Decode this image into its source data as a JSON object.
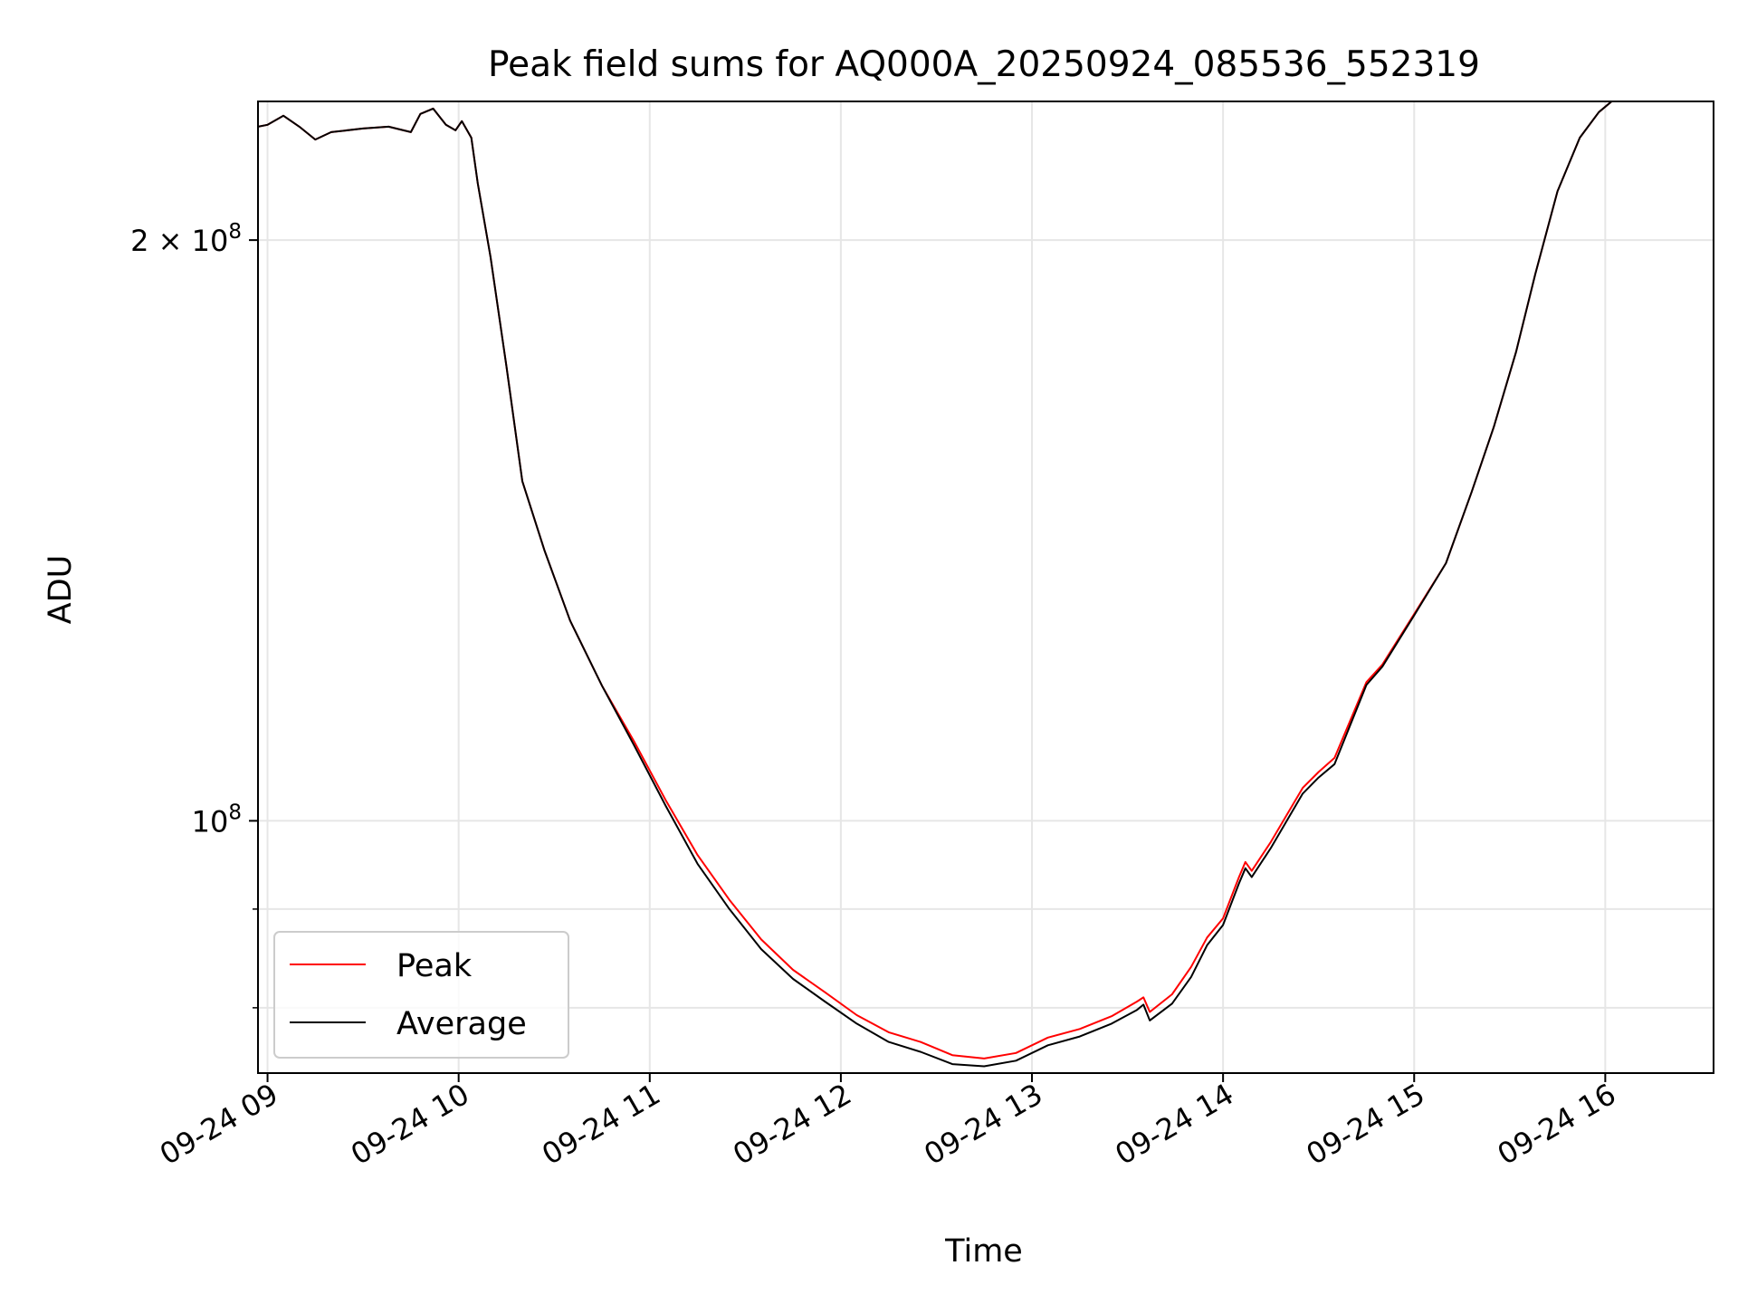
{
  "chart_data": {
    "type": "line",
    "title": "Peak field sums for AQ000A_20250924_085536_552319",
    "xlabel": "Time",
    "ylabel": "ADU",
    "x_axis": {
      "kind": "time",
      "range": [
        "2025-09-24 08:57",
        "2025-09-24 16:34"
      ],
      "ticks": [
        {
          "value": "2025-09-24 09:00",
          "label": "09-24 09"
        },
        {
          "value": "2025-09-24 10:00",
          "label": "09-24 10"
        },
        {
          "value": "2025-09-24 11:00",
          "label": "09-24 11"
        },
        {
          "value": "2025-09-24 12:00",
          "label": "09-24 12"
        },
        {
          "value": "2025-09-24 13:00",
          "label": "09-24 13"
        },
        {
          "value": "2025-09-24 14:00",
          "label": "09-24 14"
        },
        {
          "value": "2025-09-24 15:00",
          "label": "09-24 15"
        },
        {
          "value": "2025-09-24 16:00",
          "label": "09-24 16"
        }
      ]
    },
    "y_axis": {
      "scale": "log",
      "range": [
        74000000,
        236000000
      ],
      "major_ticks": [
        {
          "value": 100000000,
          "base": "10",
          "exponent": "8",
          "coef": ""
        },
        {
          "value": 200000000,
          "base": "10",
          "exponent": "8",
          "coef": "2"
        }
      ],
      "minor_ticks": [
        80000000,
        90000000
      ]
    },
    "grid": true,
    "legend": {
      "position": "lower-left"
    },
    "series": [
      {
        "name": "Peak",
        "color": "#ff0000",
        "points": [
          [
            "2025-09-24 08:57",
            229000000
          ],
          [
            "2025-09-24 09:00",
            229500000
          ],
          [
            "2025-09-24 09:05",
            232000000
          ],
          [
            "2025-09-24 09:10",
            229000000
          ],
          [
            "2025-09-24 09:15",
            225500000
          ],
          [
            "2025-09-24 09:20",
            227500000
          ],
          [
            "2025-09-24 09:30",
            228500000
          ],
          [
            "2025-09-24 09:38",
            229000000
          ],
          [
            "2025-09-24 09:45",
            227500000
          ],
          [
            "2025-09-24 09:48",
            232500000
          ],
          [
            "2025-09-24 09:52",
            234000000
          ],
          [
            "2025-09-24 09:56",
            229500000
          ],
          [
            "2025-09-24 09:59",
            228000000
          ],
          [
            "2025-09-24 10:01",
            230500000
          ],
          [
            "2025-09-24 10:04",
            226000000
          ],
          [
            "2025-09-24 10:06",
            214000000
          ],
          [
            "2025-09-24 10:10",
            196000000
          ],
          [
            "2025-09-24 10:15",
            172000000
          ],
          [
            "2025-09-24 10:20",
            150000000
          ],
          [
            "2025-09-24 10:27",
            138000000
          ],
          [
            "2025-09-24 10:35",
            127000000
          ],
          [
            "2025-09-24 10:45",
            117500000
          ],
          [
            "2025-09-24 10:55",
            110000000
          ],
          [
            "2025-09-24 11:05",
            102500000
          ],
          [
            "2025-09-24 11:15",
            96000000
          ],
          [
            "2025-09-24 11:25",
            91000000
          ],
          [
            "2025-09-24 11:35",
            86800000
          ],
          [
            "2025-09-24 11:45",
            83700000
          ],
          [
            "2025-09-24 11:55",
            81500000
          ],
          [
            "2025-09-24 12:05",
            79300000
          ],
          [
            "2025-09-24 12:15",
            77700000
          ],
          [
            "2025-09-24 12:25",
            76800000
          ],
          [
            "2025-09-24 12:35",
            75600000
          ],
          [
            "2025-09-24 12:45",
            75300000
          ],
          [
            "2025-09-24 12:55",
            75800000
          ],
          [
            "2025-09-24 13:05",
            77200000
          ],
          [
            "2025-09-24 13:15",
            78000000
          ],
          [
            "2025-09-24 13:25",
            79200000
          ],
          [
            "2025-09-24 13:33",
            80600000
          ],
          [
            "2025-09-24 13:35",
            81000000
          ],
          [
            "2025-09-24 13:37",
            79600000
          ],
          [
            "2025-09-24 13:44",
            81300000
          ],
          [
            "2025-09-24 13:50",
            84000000
          ],
          [
            "2025-09-24 13:55",
            87000000
          ],
          [
            "2025-09-24 14:00",
            89000000
          ],
          [
            "2025-09-24 14:05",
            93500000
          ],
          [
            "2025-09-24 14:07",
            95200000
          ],
          [
            "2025-09-24 14:09",
            94200000
          ],
          [
            "2025-09-24 14:15",
            97500000
          ],
          [
            "2025-09-24 14:25",
            104000000
          ],
          [
            "2025-09-24 14:30",
            106000000
          ],
          [
            "2025-09-24 14:35",
            107800000
          ],
          [
            "2025-09-24 14:45",
            118000000
          ],
          [
            "2025-09-24 14:50",
            120500000
          ],
          [
            "2025-09-24 15:00",
            128000000
          ],
          [
            "2025-09-24 15:10",
            136000000
          ],
          [
            "2025-09-24 15:18",
            148000000
          ],
          [
            "2025-09-24 15:25",
            160000000
          ],
          [
            "2025-09-24 15:32",
            175000000
          ],
          [
            "2025-09-24 15:38",
            192000000
          ],
          [
            "2025-09-24 15:45",
            212000000
          ],
          [
            "2025-09-24 15:52",
            226000000
          ],
          [
            "2025-09-24 15:58",
            233000000
          ],
          [
            "2025-09-24 16:02",
            236000000
          ]
        ]
      },
      {
        "name": "Average",
        "color": "#000000",
        "points": [
          [
            "2025-09-24 08:57",
            229000000
          ],
          [
            "2025-09-24 09:00",
            229500000
          ],
          [
            "2025-09-24 09:05",
            232000000
          ],
          [
            "2025-09-24 09:10",
            229000000
          ],
          [
            "2025-09-24 09:15",
            225500000
          ],
          [
            "2025-09-24 09:20",
            227500000
          ],
          [
            "2025-09-24 09:30",
            228500000
          ],
          [
            "2025-09-24 09:38",
            229000000
          ],
          [
            "2025-09-24 09:45",
            227500000
          ],
          [
            "2025-09-24 09:48",
            232500000
          ],
          [
            "2025-09-24 09:52",
            234000000
          ],
          [
            "2025-09-24 09:56",
            229500000
          ],
          [
            "2025-09-24 09:59",
            228000000
          ],
          [
            "2025-09-24 10:01",
            230500000
          ],
          [
            "2025-09-24 10:04",
            226000000
          ],
          [
            "2025-09-24 10:06",
            214000000
          ],
          [
            "2025-09-24 10:10",
            196000000
          ],
          [
            "2025-09-24 10:15",
            172000000
          ],
          [
            "2025-09-24 10:20",
            150000000
          ],
          [
            "2025-09-24 10:27",
            138000000
          ],
          [
            "2025-09-24 10:35",
            127000000
          ],
          [
            "2025-09-24 10:45",
            117500000
          ],
          [
            "2025-09-24 10:55",
            109500000
          ],
          [
            "2025-09-24 11:05",
            101800000
          ],
          [
            "2025-09-24 11:15",
            95000000
          ],
          [
            "2025-09-24 11:25",
            90000000
          ],
          [
            "2025-09-24 11:35",
            85800000
          ],
          [
            "2025-09-24 11:45",
            82800000
          ],
          [
            "2025-09-24 11:55",
            80600000
          ],
          [
            "2025-09-24 12:05",
            78500000
          ],
          [
            "2025-09-24 12:15",
            76800000
          ],
          [
            "2025-09-24 12:25",
            75900000
          ],
          [
            "2025-09-24 12:35",
            74800000
          ],
          [
            "2025-09-24 12:45",
            74600000
          ],
          [
            "2025-09-24 12:55",
            75100000
          ],
          [
            "2025-09-24 13:05",
            76500000
          ],
          [
            "2025-09-24 13:15",
            77300000
          ],
          [
            "2025-09-24 13:25",
            78500000
          ],
          [
            "2025-09-24 13:33",
            79800000
          ],
          [
            "2025-09-24 13:35",
            80300000
          ],
          [
            "2025-09-24 13:37",
            78800000
          ],
          [
            "2025-09-24 13:44",
            80400000
          ],
          [
            "2025-09-24 13:50",
            83000000
          ],
          [
            "2025-09-24 13:55",
            86200000
          ],
          [
            "2025-09-24 14:00",
            88300000
          ],
          [
            "2025-09-24 14:05",
            92800000
          ],
          [
            "2025-09-24 14:07",
            94500000
          ],
          [
            "2025-09-24 14:09",
            93500000
          ],
          [
            "2025-09-24 14:15",
            96800000
          ],
          [
            "2025-09-24 14:25",
            103300000
          ],
          [
            "2025-09-24 14:30",
            105300000
          ],
          [
            "2025-09-24 14:35",
            107000000
          ],
          [
            "2025-09-24 14:45",
            117600000
          ],
          [
            "2025-09-24 14:50",
            120200000
          ],
          [
            "2025-09-24 15:00",
            127800000
          ],
          [
            "2025-09-24 15:10",
            136000000
          ],
          [
            "2025-09-24 15:18",
            148000000
          ],
          [
            "2025-09-24 15:25",
            160000000
          ],
          [
            "2025-09-24 15:32",
            175000000
          ],
          [
            "2025-09-24 15:38",
            192000000
          ],
          [
            "2025-09-24 15:45",
            212000000
          ],
          [
            "2025-09-24 15:52",
            226000000
          ],
          [
            "2025-09-24 15:58",
            233000000
          ],
          [
            "2025-09-24 16:02",
            236000000
          ]
        ]
      }
    ]
  }
}
